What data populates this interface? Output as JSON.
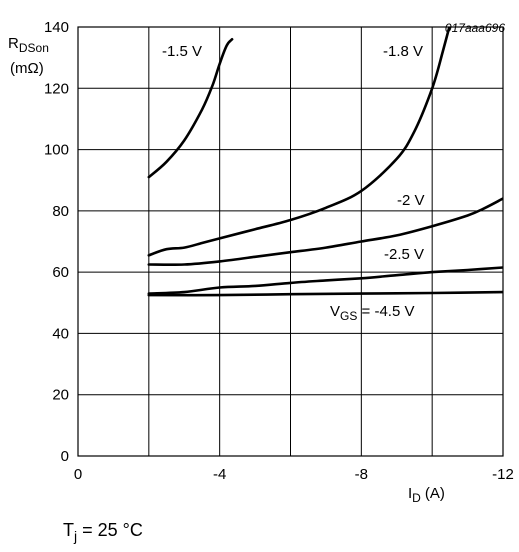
{
  "chart_data": {
    "type": "line",
    "figure_code": "017aaa696",
    "xlabel": {
      "main": "I",
      "sub": "D",
      "unit": "(A)"
    },
    "ylabel": {
      "main": "R",
      "sub": "DSon",
      "unit": "(mΩ)"
    },
    "xlim": [
      0,
      -12
    ],
    "ylim": [
      0,
      140
    ],
    "x_ticks": [
      "0",
      "-4",
      "-8",
      "-12"
    ],
    "y_ticks": [
      "0",
      "20",
      "40",
      "60",
      "80",
      "100",
      "120",
      "140"
    ],
    "grid": true,
    "condition": {
      "main": "T",
      "sub": "j",
      "rest": " = 25 °C"
    },
    "series": [
      {
        "label": "-1.5 V",
        "x": [
          -2,
          -2.5,
          -3,
          -3.5,
          -3.8,
          -4.0,
          -4.2,
          -4.35
        ],
        "y": [
          91,
          96,
          103,
          113,
          121,
          128,
          134,
          136
        ]
      },
      {
        "label": "-1.8 V",
        "x": [
          -2,
          -2.5,
          -3,
          -3.5,
          -4,
          -5,
          -6,
          -7,
          -8,
          -9,
          -9.5,
          -10,
          -10.3,
          -10.6
        ],
        "y": [
          65.5,
          67.5,
          68,
          69.5,
          71,
          74,
          77,
          81,
          86.5,
          97,
          106,
          120,
          132,
          145
        ]
      },
      {
        "label": "-2 V",
        "x": [
          -2,
          -3,
          -4,
          -5,
          -6,
          -7,
          -8,
          -9,
          -10,
          -11,
          -11.5,
          -12
        ],
        "y": [
          62.5,
          62.5,
          63.5,
          65,
          66.5,
          68,
          70,
          72,
          75,
          78.5,
          81,
          84
        ]
      },
      {
        "label": "-2.5 V",
        "x": [
          -2,
          -3,
          -4,
          -5,
          -6,
          -7,
          -8,
          -9,
          -10,
          -11,
          -12
        ],
        "y": [
          53,
          53.5,
          55,
          55.5,
          56.5,
          57.3,
          58,
          59,
          60,
          60.7,
          61.5
        ]
      },
      {
        "label": {
          "main": "V",
          "sub": "GS",
          "rest": " = -4.5 V"
        },
        "x": [
          -2,
          -4,
          -6,
          -8,
          -10,
          -12
        ],
        "y": [
          52.5,
          52.5,
          52.8,
          53.0,
          53.2,
          53.5
        ]
      }
    ]
  }
}
